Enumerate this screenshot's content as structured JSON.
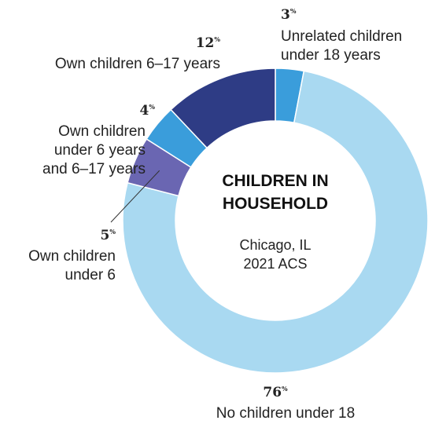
{
  "chart_data": {
    "type": "pie",
    "title": [
      "CHILDREN IN",
      "HOUSEHOLD"
    ],
    "subtitle": [
      "Chicago, IL",
      "2021 ACS"
    ],
    "percent_sign": "%",
    "slices": [
      {
        "label": [
          "Unrelated children",
          "under 18 years"
        ],
        "value": 3,
        "color": "#3a9ddb"
      },
      {
        "label": [
          "No children under 18"
        ],
        "value": 76,
        "color": "#a9d9f1"
      },
      {
        "label": [
          "Own children",
          "under 6"
        ],
        "value": 5,
        "color": "#6a66b2"
      },
      {
        "label": [
          "Own children",
          "under 6 years",
          "and 6–17 years"
        ],
        "value": 4,
        "color": "#3a9ddb"
      },
      {
        "label": [
          "Own children 6–17 years"
        ],
        "value": 12,
        "color": "#2e3c85"
      }
    ]
  }
}
